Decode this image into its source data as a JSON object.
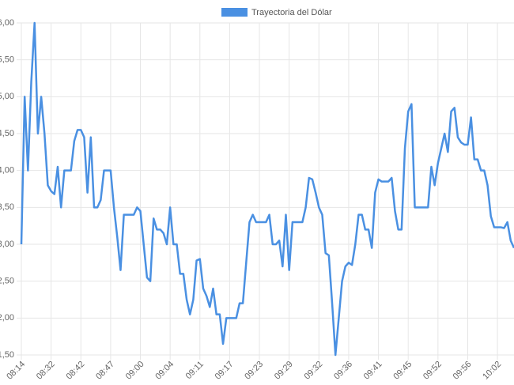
{
  "chart_data": {
    "type": "line",
    "ylim": [
      1.5,
      6.0
    ],
    "yticks": [
      {
        "value": 1.5,
        "label": "1,50"
      },
      {
        "value": 2.0,
        "label": "2,00"
      },
      {
        "value": 2.5,
        "label": "2,50"
      },
      {
        "value": 3.0,
        "label": "3,00"
      },
      {
        "value": 3.5,
        "label": "3,50"
      },
      {
        "value": 4.0,
        "label": "4,00"
      },
      {
        "value": 4.5,
        "label": "4,50"
      },
      {
        "value": 5.0,
        "label": "5,00"
      },
      {
        "value": 5.5,
        "label": "5,50"
      },
      {
        "value": 6.0,
        "label": "6,00"
      }
    ],
    "grid": true,
    "legend": "top",
    "categories": [
      "08:14",
      null,
      null,
      null,
      null,
      null,
      null,
      null,
      null,
      "08:32",
      null,
      null,
      null,
      null,
      null,
      null,
      null,
      null,
      "08:42",
      null,
      null,
      null,
      null,
      null,
      null,
      null,
      null,
      "08:47",
      null,
      null,
      null,
      null,
      null,
      null,
      null,
      null,
      "09:00",
      null,
      null,
      null,
      null,
      null,
      null,
      null,
      null,
      "09:04",
      null,
      null,
      null,
      null,
      null,
      null,
      null,
      null,
      "09:11",
      null,
      null,
      null,
      null,
      null,
      null,
      null,
      null,
      "09:17",
      null,
      null,
      null,
      null,
      null,
      null,
      null,
      null,
      "09:23",
      null,
      null,
      null,
      null,
      null,
      null,
      null,
      null,
      "09:29",
      null,
      null,
      null,
      null,
      null,
      null,
      null,
      null,
      "09:32",
      null,
      null,
      null,
      null,
      null,
      null,
      null,
      null,
      "09:36",
      null,
      null,
      null,
      null,
      null,
      null,
      null,
      null,
      "09:41",
      null,
      null,
      null,
      null,
      null,
      null,
      null,
      null,
      "09:45",
      null,
      null,
      null,
      null,
      null,
      null,
      null,
      null,
      "09:52",
      null,
      null,
      null,
      null,
      null,
      null,
      null,
      null,
      "09:56",
      null,
      null,
      null,
      null,
      null,
      null,
      null,
      null,
      "10:02",
      null,
      null,
      null,
      null,
      null
    ],
    "series": [
      {
        "name": "Trayectoria del Dólar",
        "color": "#4a90e2",
        "values": [
          3.0,
          5.0,
          4.0,
          5.2,
          6.0,
          4.5,
          5.0,
          4.5,
          3.8,
          3.72,
          3.68,
          4.05,
          3.5,
          4.0,
          4.0,
          4.0,
          4.4,
          4.55,
          4.55,
          4.45,
          3.7,
          4.45,
          3.5,
          3.5,
          3.6,
          4.0,
          4.0,
          4.0,
          3.5,
          3.1,
          2.65,
          3.4,
          3.4,
          3.4,
          3.4,
          3.5,
          3.45,
          3.0,
          2.55,
          2.5,
          3.35,
          3.2,
          3.2,
          3.15,
          3.0,
          3.5,
          3.0,
          3.0,
          2.6,
          2.6,
          2.25,
          2.05,
          2.25,
          2.78,
          2.8,
          2.4,
          2.3,
          2.15,
          2.4,
          2.05,
          2.05,
          1.65,
          2.0,
          2.0,
          2.0,
          2.0,
          2.2,
          2.2,
          2.75,
          3.3,
          3.4,
          3.3,
          3.3,
          3.3,
          3.3,
          3.4,
          3.0,
          3.0,
          3.05,
          2.7,
          3.4,
          2.65,
          3.3,
          3.3,
          3.3,
          3.3,
          3.5,
          3.9,
          3.88,
          3.7,
          3.5,
          3.4,
          2.88,
          2.85,
          2.2,
          1.5,
          2.0,
          2.5,
          2.7,
          2.75,
          2.72,
          3.0,
          3.4,
          3.4,
          3.2,
          3.2,
          2.95,
          3.7,
          3.88,
          3.85,
          3.85,
          3.85,
          3.9,
          3.45,
          3.2,
          3.2,
          4.3,
          4.8,
          4.9,
          3.5,
          3.5,
          3.5,
          3.5,
          3.5,
          4.05,
          3.8,
          4.1,
          4.3,
          4.5,
          4.25,
          4.8,
          4.85,
          4.45,
          4.38,
          4.35,
          4.35,
          4.72,
          4.15,
          4.15,
          4.0,
          4.0,
          3.8,
          3.38,
          3.23,
          3.23,
          3.23,
          3.22,
          3.3,
          3.05,
          2.95
        ]
      }
    ]
  }
}
